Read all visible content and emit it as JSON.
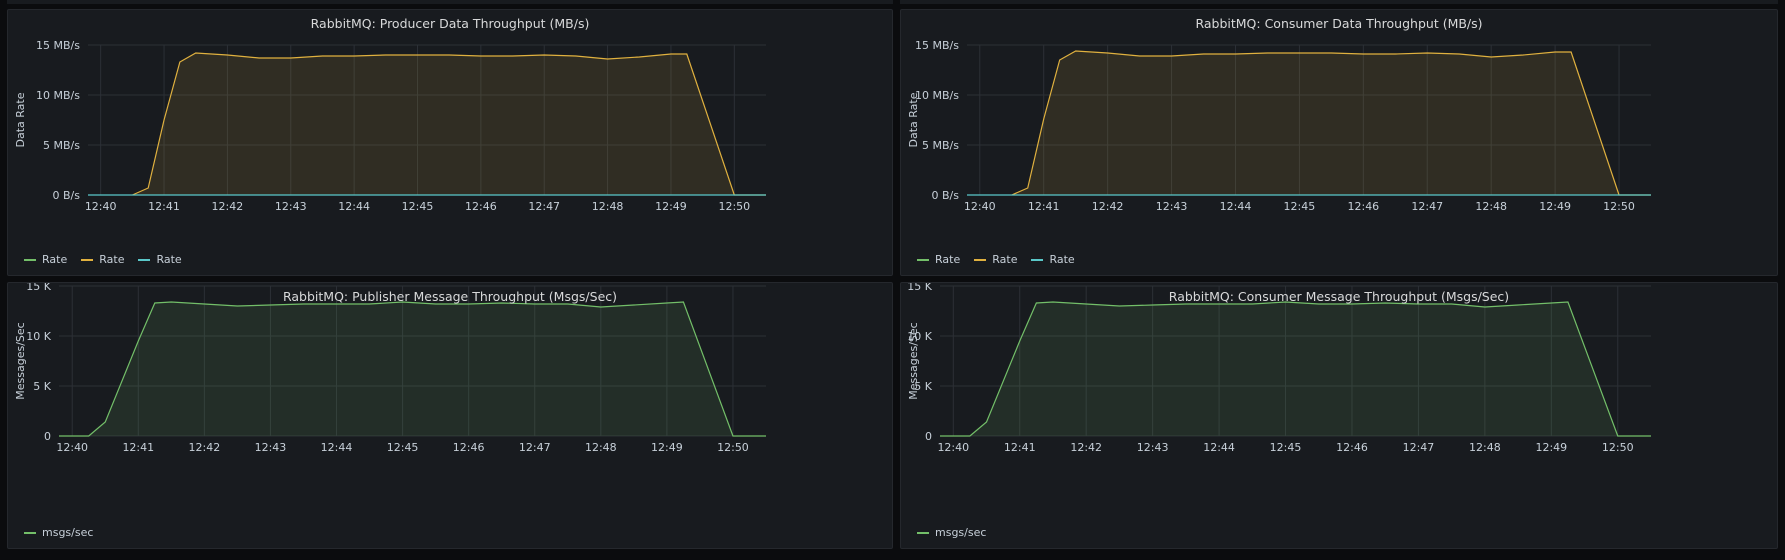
{
  "colors": {
    "background": "#0b0c0e",
    "panel": "#181b1f",
    "grid": "#2c3036",
    "text": "#c7d0d9",
    "green": "#73bf69",
    "yellow": "#e0b13f",
    "cyan": "#5ac8c9"
  },
  "panels": [
    {
      "title": "RabbitMQ: Producer Data Throughput (MB/s)",
      "ylabel": "Data Rate",
      "legend": [
        {
          "label": "Rate",
          "color": "#73bf69"
        },
        {
          "label": "Rate",
          "color": "#e0b13f"
        },
        {
          "label": "Rate",
          "color": "#5ac8c9"
        }
      ]
    },
    {
      "title": "RabbitMQ: Consumer Data Throughput (MB/s)",
      "ylabel": "Data Rate",
      "legend": [
        {
          "label": "Rate",
          "color": "#73bf69"
        },
        {
          "label": "Rate",
          "color": "#e0b13f"
        },
        {
          "label": "Rate",
          "color": "#5ac8c9"
        }
      ]
    },
    {
      "title": "RabbitMQ: Publisher Message Throughput (Msgs/Sec)",
      "ylabel": "Messages/Sec",
      "legend": [
        {
          "label": "msgs/sec",
          "color": "#73bf69"
        }
      ]
    },
    {
      "title": "RabbitMQ: Consumer Message Throughput (Msgs/Sec)",
      "ylabel": "Messages/Sec",
      "legend": [
        {
          "label": "msgs/sec",
          "color": "#73bf69"
        }
      ]
    }
  ],
  "chart_data": [
    {
      "type": "area",
      "title": "RabbitMQ: Producer Data Throughput (MB/s)",
      "ylabel": "Data Rate",
      "xlabel": "",
      "x_ticks": [
        "12:40",
        "12:41",
        "12:42",
        "12:43",
        "12:44",
        "12:45",
        "12:46",
        "12:47",
        "12:48",
        "12:49",
        "12:50"
      ],
      "y_ticks": [
        "0 B/s",
        "5 MB/s",
        "10 MB/s",
        "15 MB/s"
      ],
      "ylim": [
        0,
        15
      ],
      "xlim_minutes": [
        "12:39:48",
        "12:50:30"
      ],
      "grid": true,
      "legend_position": "bottom-left",
      "series": [
        {
          "name": "Rate",
          "color": "#e0b13f",
          "x": [
            "12:40:30",
            "12:40:45",
            "12:41:00",
            "12:41:15",
            "12:41:30",
            "12:42:00",
            "12:42:30",
            "12:43:00",
            "12:43:30",
            "12:44:00",
            "12:44:30",
            "12:45:00",
            "12:45:30",
            "12:46:00",
            "12:46:30",
            "12:47:00",
            "12:47:30",
            "12:48:00",
            "12:48:30",
            "12:49:00",
            "12:49:15",
            "12:50:00",
            "12:50:30"
          ],
          "values": [
            0,
            0.7,
            7.5,
            13.3,
            14.2,
            14.0,
            13.7,
            13.7,
            13.9,
            13.9,
            14.0,
            14.0,
            14.0,
            13.9,
            13.9,
            14.0,
            13.9,
            13.6,
            13.8,
            14.1,
            14.1,
            0,
            0
          ]
        },
        {
          "name": "Rate",
          "color": "#5ac8c9",
          "x": [
            "12:39:48",
            "12:50:30"
          ],
          "values": [
            0,
            0
          ]
        }
      ]
    },
    {
      "type": "area",
      "title": "RabbitMQ: Consumer Data Throughput (MB/s)",
      "ylabel": "Data Rate",
      "xlabel": "",
      "x_ticks": [
        "12:40",
        "12:41",
        "12:42",
        "12:43",
        "12:44",
        "12:45",
        "12:46",
        "12:47",
        "12:48",
        "12:49",
        "12:50"
      ],
      "y_ticks": [
        "0 B/s",
        "5 MB/s",
        "10 MB/s",
        "15 MB/s"
      ],
      "ylim": [
        0,
        15
      ],
      "xlim_minutes": [
        "12:39:48",
        "12:50:30"
      ],
      "grid": true,
      "legend_position": "bottom-left",
      "series": [
        {
          "name": "Rate",
          "color": "#e0b13f",
          "x": [
            "12:40:30",
            "12:40:45",
            "12:41:00",
            "12:41:15",
            "12:41:30",
            "12:42:00",
            "12:42:30",
            "12:43:00",
            "12:43:30",
            "12:44:00",
            "12:44:30",
            "12:45:00",
            "12:45:30",
            "12:46:00",
            "12:46:30",
            "12:47:00",
            "12:47:30",
            "12:48:00",
            "12:48:30",
            "12:49:00",
            "12:49:15",
            "12:50:00",
            "12:50:30"
          ],
          "values": [
            0,
            0.7,
            7.6,
            13.5,
            14.4,
            14.2,
            13.9,
            13.9,
            14.1,
            14.1,
            14.2,
            14.2,
            14.2,
            14.1,
            14.1,
            14.2,
            14.1,
            13.8,
            14.0,
            14.3,
            14.3,
            0,
            0
          ]
        },
        {
          "name": "Rate",
          "color": "#5ac8c9",
          "x": [
            "12:39:48",
            "12:50:30"
          ],
          "values": [
            0,
            0
          ]
        }
      ]
    },
    {
      "type": "area",
      "title": "RabbitMQ: Publisher Message Throughput (Msgs/Sec)",
      "ylabel": "Messages/Sec",
      "xlabel": "",
      "x_ticks": [
        "12:40",
        "12:41",
        "12:42",
        "12:43",
        "12:44",
        "12:45",
        "12:46",
        "12:47",
        "12:48",
        "12:49",
        "12:50"
      ],
      "y_ticks": [
        "0",
        "5 K",
        "10 K",
        "15 K"
      ],
      "ylim": [
        0,
        15000
      ],
      "xlim_minutes": [
        "12:39:48",
        "12:50:30"
      ],
      "grid": true,
      "legend_position": "bottom-left",
      "series": [
        {
          "name": "msgs/sec",
          "color": "#73bf69",
          "x": [
            "12:39:48",
            "12:40:15",
            "12:40:30",
            "12:41:00",
            "12:41:15",
            "12:41:30",
            "12:42:00",
            "12:42:30",
            "12:43:00",
            "12:43:30",
            "12:44:00",
            "12:44:30",
            "12:45:00",
            "12:45:30",
            "12:46:00",
            "12:46:30",
            "12:47:00",
            "12:47:30",
            "12:48:00",
            "12:48:30",
            "12:49:00",
            "12:49:15",
            "12:50:00",
            "12:50:30"
          ],
          "values": [
            0,
            0,
            1400,
            9500,
            13300,
            13400,
            13200,
            13000,
            13100,
            13200,
            13200,
            13200,
            13400,
            13200,
            13200,
            13300,
            13200,
            13200,
            12900,
            13100,
            13300,
            13400,
            0,
            0
          ]
        }
      ]
    },
    {
      "type": "area",
      "title": "RabbitMQ: Consumer Message Throughput (Msgs/Sec)",
      "ylabel": "Messages/Sec",
      "xlabel": "",
      "x_ticks": [
        "12:40",
        "12:41",
        "12:42",
        "12:43",
        "12:44",
        "12:45",
        "12:46",
        "12:47",
        "12:48",
        "12:49",
        "12:50"
      ],
      "y_ticks": [
        "0",
        "5 K",
        "10 K",
        "15 K"
      ],
      "ylim": [
        0,
        15000
      ],
      "xlim_minutes": [
        "12:39:48",
        "12:50:30"
      ],
      "grid": true,
      "legend_position": "bottom-left",
      "series": [
        {
          "name": "msgs/sec",
          "color": "#73bf69",
          "x": [
            "12:39:48",
            "12:40:15",
            "12:40:30",
            "12:41:00",
            "12:41:15",
            "12:41:30",
            "12:42:00",
            "12:42:30",
            "12:43:00",
            "12:43:30",
            "12:44:00",
            "12:44:30",
            "12:45:00",
            "12:45:30",
            "12:46:00",
            "12:46:30",
            "12:47:00",
            "12:47:30",
            "12:48:00",
            "12:48:30",
            "12:49:00",
            "12:49:15",
            "12:50:00",
            "12:50:30"
          ],
          "values": [
            0,
            0,
            1400,
            9500,
            13300,
            13400,
            13200,
            13000,
            13100,
            13200,
            13200,
            13200,
            13400,
            13200,
            13200,
            13300,
            13200,
            13200,
            12900,
            13100,
            13300,
            13400,
            0,
            0
          ]
        }
      ]
    }
  ]
}
